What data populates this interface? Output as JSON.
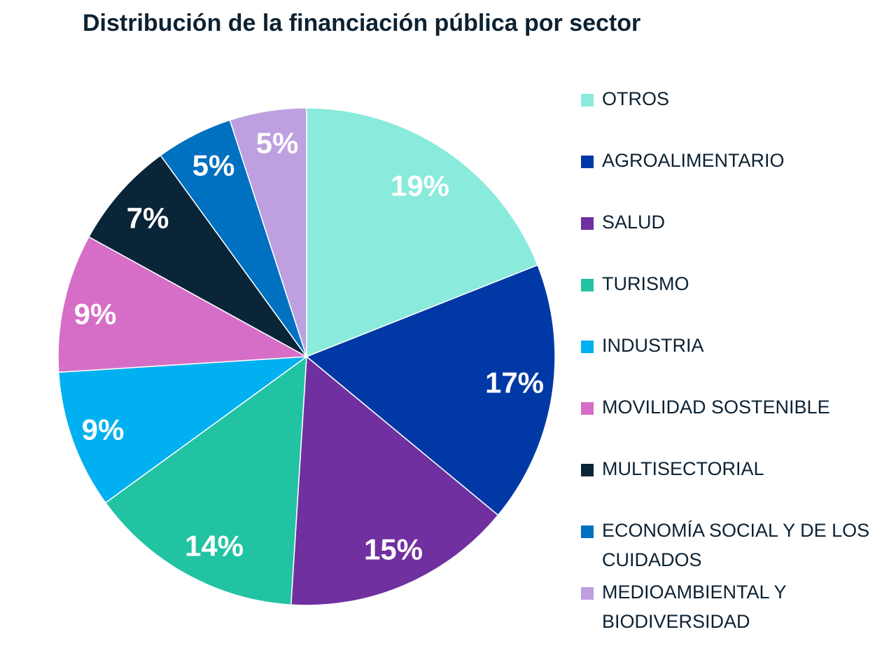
{
  "chart_data": {
    "type": "pie",
    "title": "Distribución de la financiación pública por sector",
    "categories": [
      "OTROS",
      "AGROALIMENTARIO",
      "SALUD",
      "TURISMO",
      "INDUSTRIA",
      "MOVILIDAD SOSTENIBLE",
      "MULTISECTORIAL",
      "ECONOMÍA SOCIAL Y DE LOS CUIDADOS",
      "MEDIOAMBIENTAL Y BIODIVERSIDAD"
    ],
    "values": [
      19,
      17,
      15,
      14,
      9,
      9,
      7,
      5,
      5
    ],
    "value_labels": [
      "19%",
      "17%",
      "15%",
      "14%",
      "9%",
      "9%",
      "7%",
      "5%",
      "5%"
    ],
    "colors": [
      "#8aeadb",
      "#0039a6",
      "#7030a0",
      "#22c3a3",
      "#00b0f0",
      "#d66ec8",
      "#0a2438",
      "#0070c0",
      "#bea0e0"
    ],
    "legend_position": "right",
    "start_angle": "top",
    "direction": "clockwise"
  }
}
